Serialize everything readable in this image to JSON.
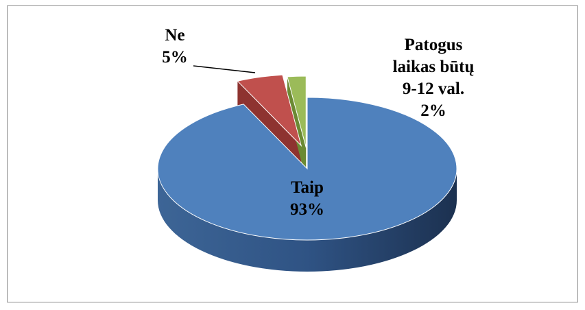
{
  "chart_data": {
    "type": "pie3d",
    "categories": [
      "Taip",
      "Ne",
      "Patogus laikas būtų 9-12 val."
    ],
    "values": [
      93,
      5,
      2
    ],
    "value_labels": [
      "93%",
      "5%",
      "2%"
    ],
    "colors": [
      "#4f81bd",
      "#c0504d",
      "#9bbb59"
    ]
  }
}
